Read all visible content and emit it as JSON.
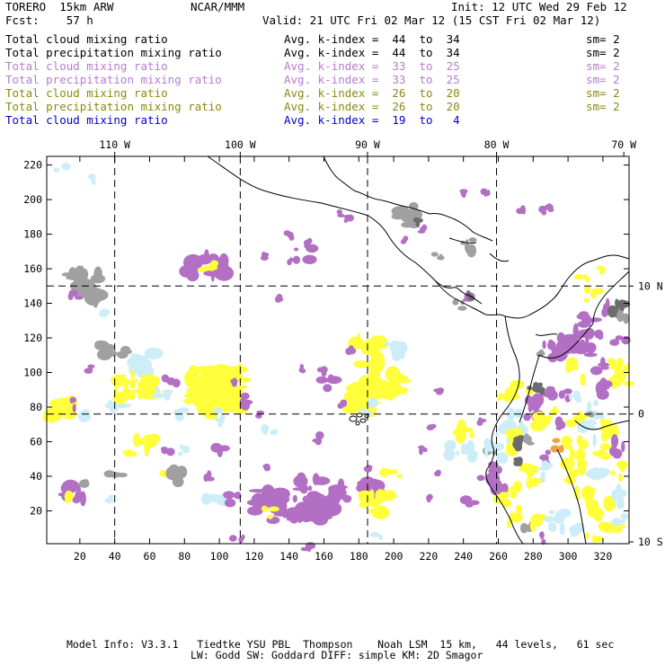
{
  "header": {
    "model": "TORERO  15km ARW",
    "org": "NCAR/MMM",
    "init": "Init: 12 UTC Wed 29 Feb 12",
    "fcst": "Fcst:    57 h",
    "valid": "Valid: 21 UTC Fri 02 Mar 12 (15 CST Fri 02 Mar 12)"
  },
  "legend": [
    {
      "field": "Total cloud mixing ratio",
      "range": "Avg. k-index =  44  to  34",
      "sm": "sm= 2",
      "color": "#000000",
      "cls": "c-black"
    },
    {
      "field": "Total precipitation mixing ratio",
      "range": "Avg. k-index =  44  to  34",
      "sm": "sm= 2",
      "color": "#000000",
      "cls": "c-black"
    },
    {
      "field": "Total cloud mixing ratio",
      "range": "Avg. k-index =  33  to  25",
      "sm": "sm= 2",
      "color": "#b77bd0",
      "cls": "c-purple"
    },
    {
      "field": "Total precipitation mixing ratio",
      "range": "Avg. k-index =  33  to  25",
      "sm": "sm= 2",
      "color": "#b77bd0",
      "cls": "c-purple"
    },
    {
      "field": "Total cloud mixing ratio",
      "range": "Avg. k-index =  26  to  20",
      "sm": "sm= 2",
      "color": "#8a8a12",
      "cls": "c-olive"
    },
    {
      "field": "Total precipitation mixing ratio",
      "range": "Avg. k-index =  26  to  20",
      "sm": "sm= 2",
      "color": "#8a8a12",
      "cls": "c-olive"
    },
    {
      "field": "Total cloud mixing ratio",
      "range": "Avg. k-index =  19  to   4",
      "sm": "",
      "color": "#0000cc",
      "cls": "c-blue"
    }
  ],
  "map": {
    "x_grid_ticks": [
      20,
      40,
      60,
      80,
      100,
      120,
      140,
      160,
      180,
      200,
      220,
      240,
      260,
      280,
      300,
      320
    ],
    "y_grid_ticks": [
      20,
      40,
      60,
      80,
      100,
      120,
      140,
      160,
      180,
      200,
      220
    ],
    "x_range": [
      1,
      335
    ],
    "y_range": [
      1,
      225
    ],
    "lon_labels": [
      {
        "label": "110 W",
        "x": 40
      },
      {
        "label": "100 W",
        "x": 112
      },
      {
        "label": "90 W",
        "x": 185
      },
      {
        "label": "80 W",
        "x": 259
      },
      {
        "label": "70 W",
        "x": 332
      }
    ],
    "lat_labels": [
      {
        "label": "10 N",
        "y": 150
      },
      {
        "label": "0",
        "y": 76
      },
      {
        "label": "10 S",
        "y": 2
      }
    ],
    "meridians_x": [
      40,
      112,
      185,
      259
    ],
    "parallels_y": [
      150,
      76
    ],
    "colors": {
      "gray": "#a0a0a0",
      "dark_gray": "#6c6c6c",
      "purple": "#b26fc4",
      "yellow": "#ffff3c",
      "light_blue": "#cdeef8",
      "orange": "#f0a040",
      "coast": "#000000"
    }
  },
  "footer": {
    "line1": "Model Info: V3.3.1   Tiedtke YSU PBL  Thompson    Noah LSM  15 km,   44 levels,   61 sec",
    "line2": "LW: Godd SW: Goddard DIFF: simple KM: 2D Smagor"
  }
}
